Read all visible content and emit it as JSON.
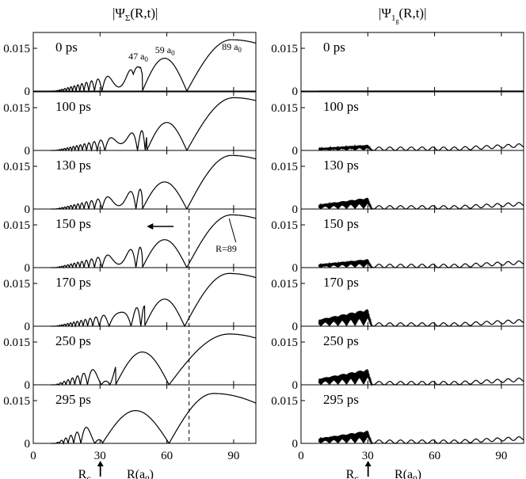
{
  "chart_data": {
    "type": "line",
    "columns": [
      {
        "title_main": "|Ψ",
        "title_sub": "Σ",
        "title_tail": "(R,t)|"
      },
      {
        "title_main": "|Ψ",
        "title_sub": "1",
        "title_subsub": "g",
        "title_tail": "(R,t)|"
      }
    ],
    "times": [
      "0 ps",
      "100 ps",
      "130 ps",
      "150 ps",
      "170 ps",
      "250 ps",
      "295 ps"
    ],
    "xlim": [
      0,
      100
    ],
    "ylim": [
      0,
      0.02
    ],
    "x_ticks": [
      "0",
      "30",
      "60",
      "90"
    ],
    "y_ticks": [
      "0",
      "0.015"
    ],
    "xlabel": "R(a",
    "xlabel_sub": "0",
    "xlabel_tail": ")",
    "rc_label": "R",
    "rc_sub": "c",
    "rc_value": 28,
    "dashed_x": 70,
    "annotations": {
      "peak47": {
        "text": "47 a",
        "sub": "0",
        "x": 47
      },
      "peak59": {
        "text": "59 a",
        "sub": "0",
        "x": 59
      },
      "peak89": {
        "text": "89 a",
        "sub": "0",
        "x": 89
      },
      "r89": {
        "text": "R=89",
        "x": 89
      }
    },
    "left_panels": [
      {
        "time": "0 ps",
        "big_peaks": [
          [
            47,
            0.0085
          ],
          [
            59,
            0.0115
          ],
          [
            89,
            0.018
          ]
        ],
        "node_at": 69,
        "small_start": 10,
        "small_end": 44,
        "small_amp": 0.006
      },
      {
        "time": "100 ps",
        "big_peaks": [
          [
            60,
            0.0098
          ],
          [
            90,
            0.0185
          ]
        ],
        "node_at": 69
      },
      {
        "time": "130 ps",
        "big_peaks": [
          [
            59,
            0.0095
          ],
          [
            89,
            0.0188
          ]
        ],
        "node_at": 69
      },
      {
        "time": "150 ps",
        "big_peaks": [
          [
            59,
            0.0098
          ],
          [
            89,
            0.0185
          ]
        ],
        "node_at": 69
      },
      {
        "time": "170 ps",
        "big_peaks": [
          [
            59,
            0.0095
          ],
          [
            88,
            0.0185
          ]
        ],
        "node_at": 68
      },
      {
        "time": "250 ps",
        "big_peaks": [
          [
            49,
            0.0115
          ],
          [
            88,
            0.0178
          ]
        ],
        "node_at": 61
      },
      {
        "time": "295 ps",
        "big_peaks": [
          [
            46,
            0.0115
          ],
          [
            81,
            0.0175
          ]
        ],
        "node_at": 61
      }
    ],
    "right_panels": [
      {
        "time": "0 ps",
        "amp": 0.0
      },
      {
        "time": "100 ps",
        "amp": 0.002
      },
      {
        "time": "130 ps",
        "amp": 0.004
      },
      {
        "time": "150 ps",
        "amp": 0.003
      },
      {
        "time": "170 ps",
        "amp": 0.006
      },
      {
        "time": "250 ps",
        "amp": 0.0055
      },
      {
        "time": "295 ps",
        "amp": 0.0045
      }
    ],
    "arrow_direction": "left"
  }
}
